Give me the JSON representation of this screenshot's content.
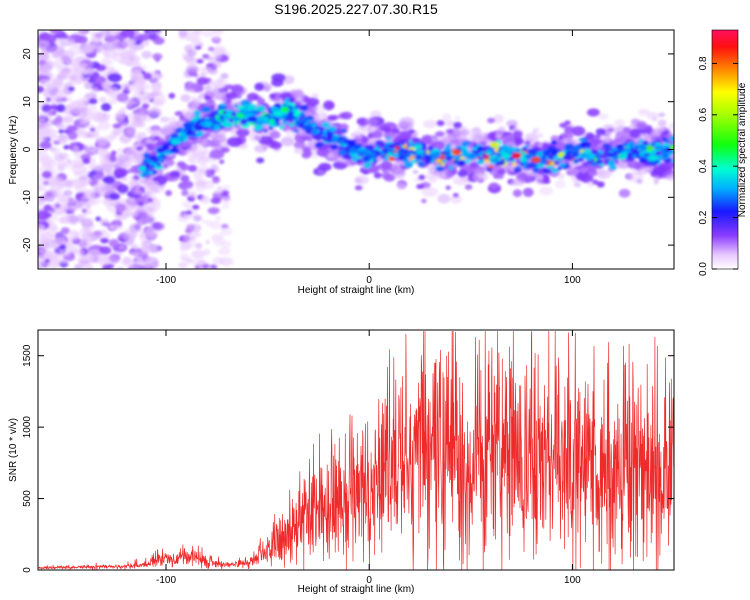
{
  "title": "S196.2025.227.07.30.R15",
  "colors": {
    "snr_line": "#ee2a2a",
    "axis": "#000000"
  },
  "chart_data": [
    {
      "type": "heatmap",
      "xlabel": "Height of straight line (km)",
      "ylabel": "Frequency (Hz)",
      "xlim": [
        -163,
        150
      ],
      "ylim": [
        -25,
        25
      ],
      "xticks": [
        -100,
        0,
        100
      ],
      "yticks": [
        -20,
        -10,
        0,
        10,
        20
      ],
      "grid": false,
      "ridge": {
        "x": [
          -110,
          -100,
          -90,
          -80,
          -70,
          -60,
          -50,
          -40,
          -30,
          -20,
          -10,
          0,
          10,
          20,
          30,
          40,
          50,
          60,
          70,
          80,
          90,
          100,
          110,
          120,
          130,
          140,
          148
        ],
        "frequency": [
          -4,
          0,
          4,
          6,
          7,
          7,
          6,
          8,
          5,
          3,
          0,
          -1,
          0,
          0,
          -1,
          -1,
          -1,
          -1,
          -1,
          -2,
          -2,
          -1,
          -1,
          -1,
          0,
          -1,
          0
        ]
      },
      "colorbar": {
        "label": "Normalized spectral amplitude",
        "range": [
          0,
          0.93
        ],
        "ticks": [
          "0.0",
          "0.2",
          "0.4",
          "0.6",
          "0.8"
        ],
        "colormap": "rainbow"
      }
    },
    {
      "type": "line",
      "xlabel": "Height of straight line (km)",
      "ylabel": "SNR (10 * v/v)",
      "xlim": [
        -163,
        150
      ],
      "ylim": [
        0,
        1680
      ],
      "xticks": [
        -100,
        0,
        100
      ],
      "yticks": [
        0,
        500,
        1000,
        1500
      ],
      "grid": false,
      "series": [
        {
          "name": "SNR",
          "x": [
            -163,
            -140,
            -120,
            -110,
            -100,
            -95,
            -90,
            -80,
            -70,
            -60,
            -55,
            -50,
            -45,
            -40,
            -35,
            -30,
            -25,
            -20,
            -15,
            -10,
            -5,
            0,
            5,
            10,
            15,
            20,
            25,
            30,
            35,
            40,
            45,
            50,
            55,
            60,
            65,
            70,
            75,
            80,
            85,
            90,
            95,
            100,
            105,
            110,
            115,
            120,
            125,
            130,
            135,
            140,
            145,
            150
          ],
          "y": [
            15,
            20,
            25,
            40,
            80,
            60,
            100,
            60,
            35,
            40,
            100,
            130,
            180,
            250,
            320,
            380,
            420,
            450,
            470,
            500,
            520,
            560,
            600,
            700,
            750,
            780,
            800,
            780,
            760,
            740,
            760,
            780,
            790,
            780,
            770,
            760,
            750,
            760,
            770,
            760,
            740,
            730,
            720,
            720,
            730,
            720,
            710,
            700,
            690,
            680,
            700,
            720
          ]
        }
      ]
    }
  ]
}
